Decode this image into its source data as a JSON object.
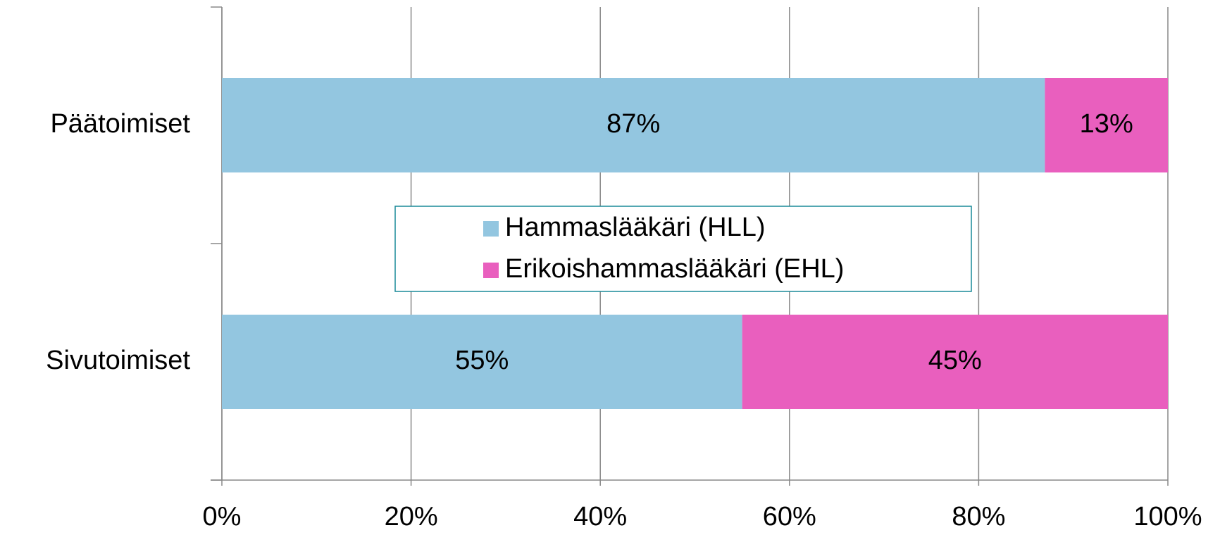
{
  "chart_data": {
    "type": "hbar_stacked",
    "categories": [
      "Päätoimiset",
      "Sivutoimiset"
    ],
    "series": [
      {
        "name": "Hammaslääkäri (HLL)",
        "color": "#93c6e0",
        "values": [
          87,
          55
        ],
        "value_labels": [
          "87%",
          "55%"
        ]
      },
      {
        "name": "Erikoishammaslääkäri (EHL)",
        "color": "#e95fbe",
        "values": [
          13,
          45
        ],
        "value_labels": [
          "13%",
          "45%"
        ]
      }
    ],
    "xlim": [
      0,
      100
    ],
    "xticks": [
      {
        "value": 0,
        "label": "0%"
      },
      {
        "value": 20,
        "label": "20%"
      },
      {
        "value": 40,
        "label": "40%"
      },
      {
        "value": 60,
        "label": "60%"
      },
      {
        "value": 80,
        "label": "80%"
      },
      {
        "value": 100,
        "label": "100%"
      }
    ],
    "grid": true
  }
}
